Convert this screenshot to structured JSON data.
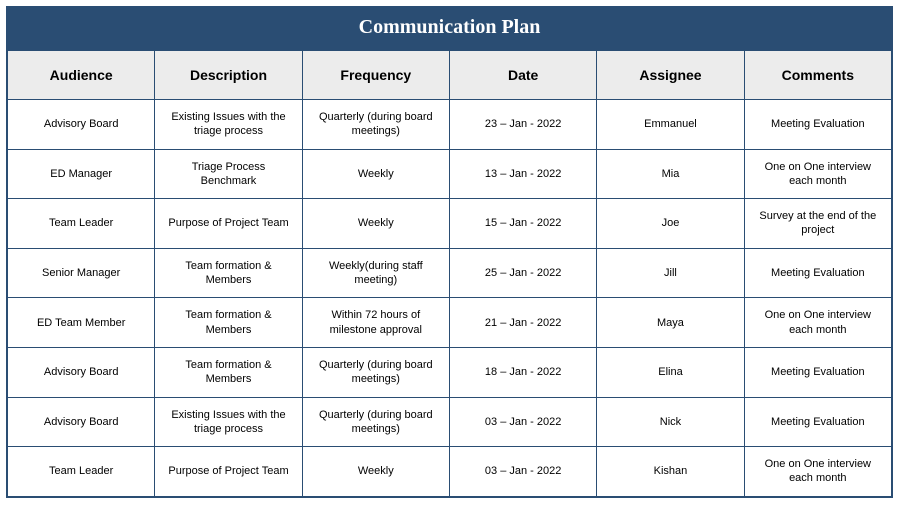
{
  "title": "Communication Plan",
  "title_bg": "#2a4d73",
  "title_color": "#ffffff",
  "title_font": "Georgia, serif",
  "title_fontsize": 20,
  "header_bg": "#ececec",
  "header_fontsize": 14,
  "body_fontsize": 11,
  "border_color": "#2a4d73",
  "columns": [
    "Audience",
    "Description",
    "Frequency",
    "Date",
    "Assignee",
    "Comments"
  ],
  "rows": [
    {
      "audience": "Advisory Board",
      "description": "Existing Issues with the triage process",
      "frequency": "Quarterly (during board meetings)",
      "date": "23 – Jan - 2022",
      "assignee": "Emmanuel",
      "comments": "Meeting Evaluation"
    },
    {
      "audience": "ED Manager",
      "description": "Triage Process Benchmark",
      "frequency": "Weekly",
      "date": "13 – Jan - 2022",
      "assignee": "Mia",
      "comments": "One on One interview each month"
    },
    {
      "audience": "Team Leader",
      "description": "Purpose of Project Team",
      "frequency": "Weekly",
      "date": "15 – Jan - 2022",
      "assignee": "Joe",
      "comments": "Survey at the end of the project"
    },
    {
      "audience": "Senior Manager",
      "description": "Team formation & Members",
      "frequency": "Weekly(during staff meeting)",
      "date": "25 – Jan - 2022",
      "assignee": "Jill",
      "comments": "Meeting Evaluation"
    },
    {
      "audience": "ED Team Member",
      "description": "Team formation & Members",
      "frequency": "Within 72 hours of milestone approval",
      "date": "21 – Jan - 2022",
      "assignee": "Maya",
      "comments": "One on One interview each month"
    },
    {
      "audience": "Advisory Board",
      "description": "Team formation & Members",
      "frequency": "Quarterly (during board meetings)",
      "date": "18 – Jan - 2022",
      "assignee": "Elina",
      "comments": "Meeting Evaluation"
    },
    {
      "audience": "Advisory Board",
      "description": "Existing Issues with the triage process",
      "frequency": "Quarterly (during board meetings)",
      "date": "03 – Jan - 2022",
      "assignee": "Nick",
      "comments": "Meeting Evaluation"
    },
    {
      "audience": "Team Leader",
      "description": "Purpose of Project Team",
      "frequency": "Weekly",
      "date": "03 – Jan - 2022",
      "assignee": "Kishan",
      "comments": "One on One interview each month"
    }
  ]
}
